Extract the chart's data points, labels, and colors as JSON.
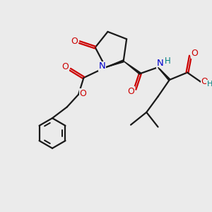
{
  "bg_color": "#ebebeb",
  "bond_color": "#1a1a1a",
  "N_color": "#0000cc",
  "O_color": "#cc0000",
  "H_color": "#008080",
  "lw": 1.6,
  "xlim": [
    0,
    10
  ],
  "ylim": [
    0,
    10
  ]
}
